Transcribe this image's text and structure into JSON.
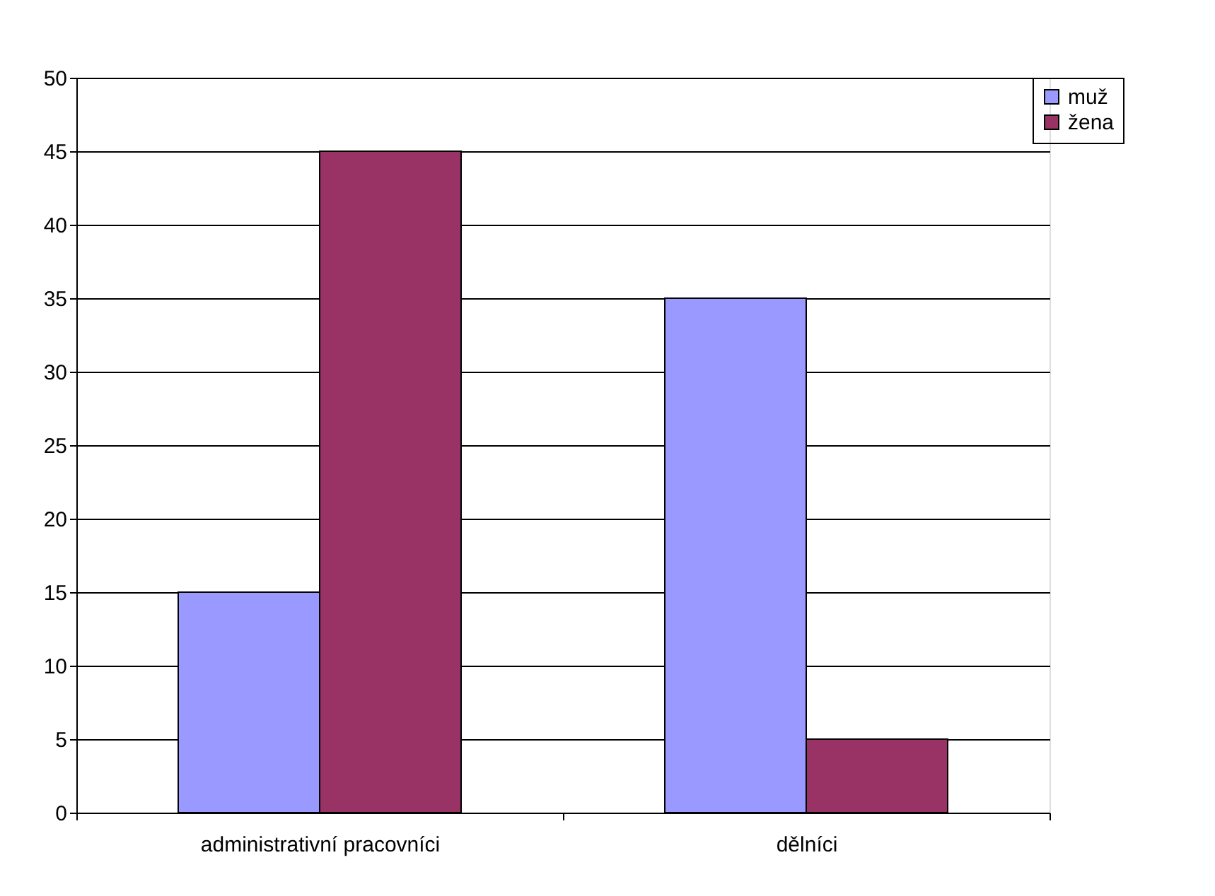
{
  "chart_data": {
    "type": "bar",
    "categories": [
      "administrativní pracovníci",
      "dělníci"
    ],
    "series": [
      {
        "name": "muž",
        "color": "#9999ff",
        "values": [
          15,
          35
        ]
      },
      {
        "name": "žena",
        "color": "#993366",
        "values": [
          45,
          5
        ]
      }
    ],
    "ylim": [
      0,
      50
    ],
    "yticks": [
      0,
      5,
      10,
      15,
      20,
      25,
      30,
      35,
      40,
      45,
      50
    ],
    "grid": "y",
    "legend": "right"
  }
}
